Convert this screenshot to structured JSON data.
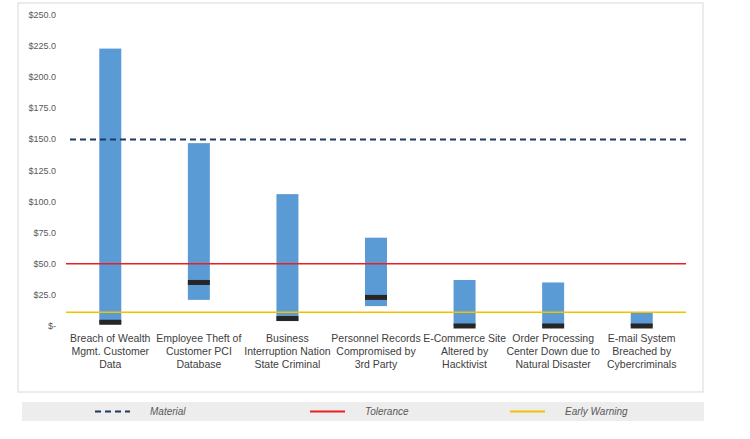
{
  "chart_data": {
    "type": "range_bar",
    "categories": [
      "Breach of Wealth Mgmt. Customer Data",
      "Employee Theft of Customer PCI Database",
      "Business Interruption Nation State Criminal",
      "Personnel Records Compromised by 3rd Party",
      "E-Commerce Site Altered by Hacktivist",
      "Order Processing Center Down due to Natural Disaster",
      "E-mail System Breached by Cybercriminals"
    ],
    "lows": [
      2,
      21,
      4,
      16,
      0,
      0,
      0
    ],
    "highs": [
      223,
      147,
      106,
      71,
      37,
      35,
      11
    ],
    "markers": [
      3,
      35,
      6,
      23,
      0,
      0,
      0
    ],
    "color": "#5b9bd5",
    "marker_color": "#262626",
    "ylim": [
      0,
      250
    ],
    "yticks": [
      {
        "value": 0,
        "label": "$-"
      },
      {
        "value": 25,
        "label": "$25.0"
      },
      {
        "value": 50,
        "label": "$50.0"
      },
      {
        "value": 75,
        "label": "$75.0"
      },
      {
        "value": 100,
        "label": "$100.0"
      },
      {
        "value": 125,
        "label": "$125.0"
      },
      {
        "value": 150,
        "label": "$150.0"
      },
      {
        "value": 175,
        "label": "$175.0"
      },
      {
        "value": 200,
        "label": "$200.0"
      },
      {
        "value": 225,
        "label": "$225.0"
      },
      {
        "value": 250,
        "label": "$250.0"
      }
    ],
    "grid": false,
    "legend": "bottom",
    "reference_lines": [
      {
        "name": "Material",
        "value": 150,
        "color": "#1f3864",
        "line_style": "dashed"
      },
      {
        "name": "Tolerance",
        "value": 50,
        "color": "#e8201e",
        "line_style": "solid"
      },
      {
        "name": "Early Warning",
        "value": 11,
        "color": "#f5c000",
        "line_style": "solid"
      }
    ]
  }
}
